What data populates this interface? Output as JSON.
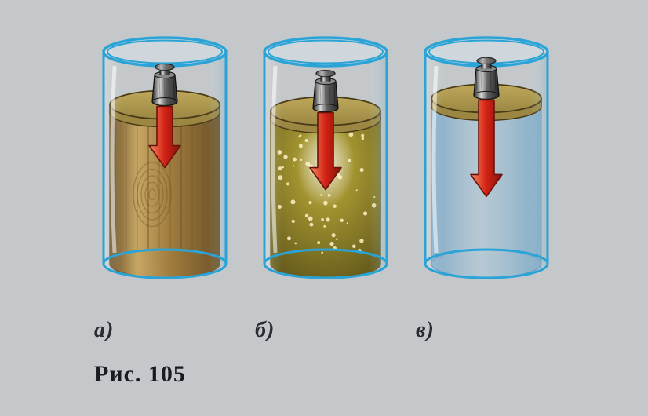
{
  "figure": {
    "caption": "Рис. 105",
    "background_color": "#c4c8cb",
    "beaker": {
      "outline_color": "#2aa3d6",
      "glass_fill": "#d8e8f0",
      "glass_opacity": 0.25
    },
    "weight": {
      "fill": "#5f5f60",
      "highlight": "#d8d8d8",
      "shadow": "#2a2a2a"
    },
    "piston": {
      "fill_top": "#bda85b",
      "fill_side": "#9b8742",
      "outline": "#4a3b18"
    },
    "arrow": {
      "fill": "#d32114",
      "outline": "#6b120a"
    },
    "items": [
      {
        "label": "а)",
        "content_type": "wood",
        "wood_fill": "#a07c3e",
        "wood_dark": "#6d5228",
        "wood_light": "#c7a665",
        "piston_level": 0.25,
        "arrow_length": 50
      },
      {
        "label": "б)",
        "content_type": "sand",
        "sand_fill": "#a29330",
        "sand_dark": "#685d1d",
        "sand_speck": "#fbf2c6",
        "piston_level": 0.28,
        "arrow_length": 70
      },
      {
        "label": "в)",
        "content_type": "water",
        "water_fill": "#9fc9e3",
        "water_dark": "#4d95c3",
        "piston_level": 0.22,
        "arrow_length": 95
      }
    ]
  }
}
